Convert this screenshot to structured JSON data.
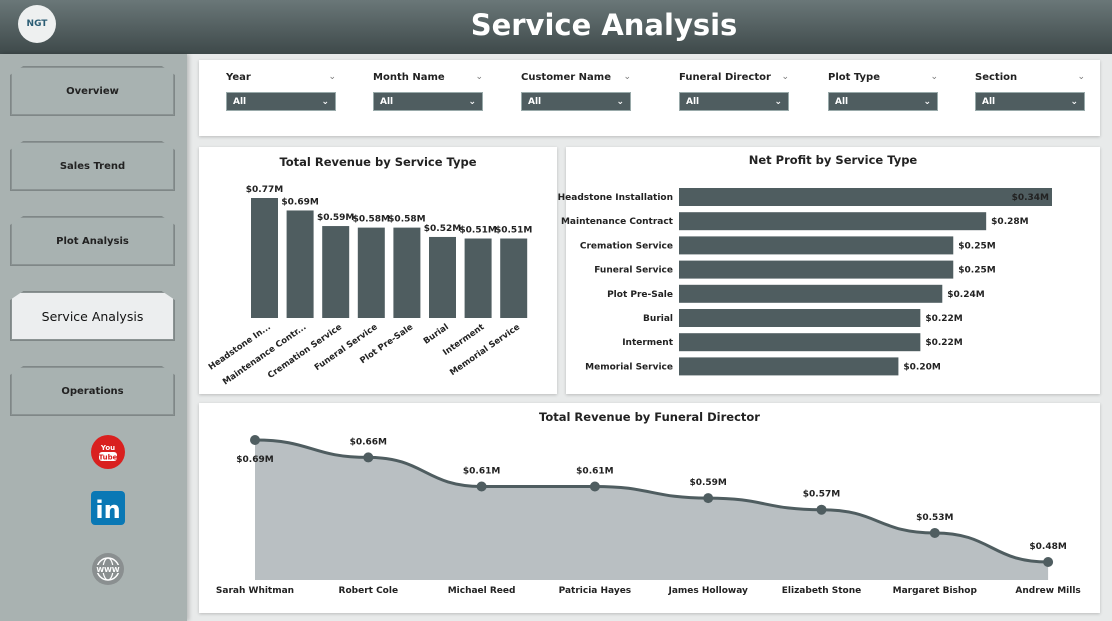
{
  "header": {
    "title": "Service Analysis",
    "logo_text": "NGT"
  },
  "sidebar": {
    "items": [
      {
        "label": "Overview"
      },
      {
        "label": "Sales Trend"
      },
      {
        "label": "Plot Analysis"
      },
      {
        "label": "Service Analysis",
        "active": true
      },
      {
        "label": "Operations"
      }
    ],
    "social": [
      {
        "icon": "youtube-icon",
        "text": "You Tube"
      },
      {
        "icon": "linkedin-icon",
        "text": "in"
      },
      {
        "icon": "globe-icon",
        "text": "WWW"
      }
    ]
  },
  "filters": [
    {
      "label": "Year",
      "value": "All"
    },
    {
      "label": "Month Name",
      "value": "All"
    },
    {
      "label": "Customer Name",
      "value": "All"
    },
    {
      "label": "Funeral Director",
      "value": "All"
    },
    {
      "label": "Plot Type",
      "value": "All"
    },
    {
      "label": "Section",
      "value": "All"
    }
  ],
  "chart_data": [
    {
      "type": "bar",
      "title": "Total Revenue by Service Type",
      "categories": [
        "Headstone In...",
        "Maintenance Contr...",
        "Cremation Service",
        "Funeral Service",
        "Plot Pre-Sale",
        "Burial",
        "Interment",
        "Memorial Service"
      ],
      "values": [
        0.77,
        0.69,
        0.59,
        0.58,
        0.58,
        0.52,
        0.51,
        0.51
      ],
      "labels": [
        "$0.77M",
        "$0.69M",
        "$0.59M",
        "$0.58M",
        "$0.58M",
        "$0.52M",
        "$0.51M",
        "$0.51M"
      ],
      "color": "#4f5d60"
    },
    {
      "type": "bar",
      "orientation": "horizontal",
      "title": "Net Profit by Service Type",
      "categories": [
        "Headstone Installation",
        "Maintenance Contract",
        "Cremation Service",
        "Funeral Service",
        "Plot Pre-Sale",
        "Burial",
        "Interment",
        "Memorial Service"
      ],
      "values": [
        0.34,
        0.28,
        0.25,
        0.25,
        0.24,
        0.22,
        0.22,
        0.2
      ],
      "labels": [
        "$0.34M",
        "$0.28M",
        "$0.25M",
        "$0.25M",
        "$0.24M",
        "$0.22M",
        "$0.22M",
        "$0.20M"
      ],
      "color": "#4f5d60"
    },
    {
      "type": "area",
      "title": "Total Revenue by Funeral Director",
      "categories": [
        "Sarah Whitman",
        "Robert Cole",
        "Michael Reed",
        "Patricia Hayes",
        "James Holloway",
        "Elizabeth Stone",
        "Margaret Bishop",
        "Andrew Mills"
      ],
      "values": [
        0.69,
        0.66,
        0.61,
        0.61,
        0.59,
        0.57,
        0.53,
        0.48
      ],
      "labels": [
        "$0.69M",
        "$0.66M",
        "$0.61M",
        "$0.61M",
        "$0.59M",
        "$0.57M",
        "$0.53M",
        "$0.48M"
      ],
      "color": "#4f5d60",
      "fill": "#b9bfc2"
    }
  ]
}
